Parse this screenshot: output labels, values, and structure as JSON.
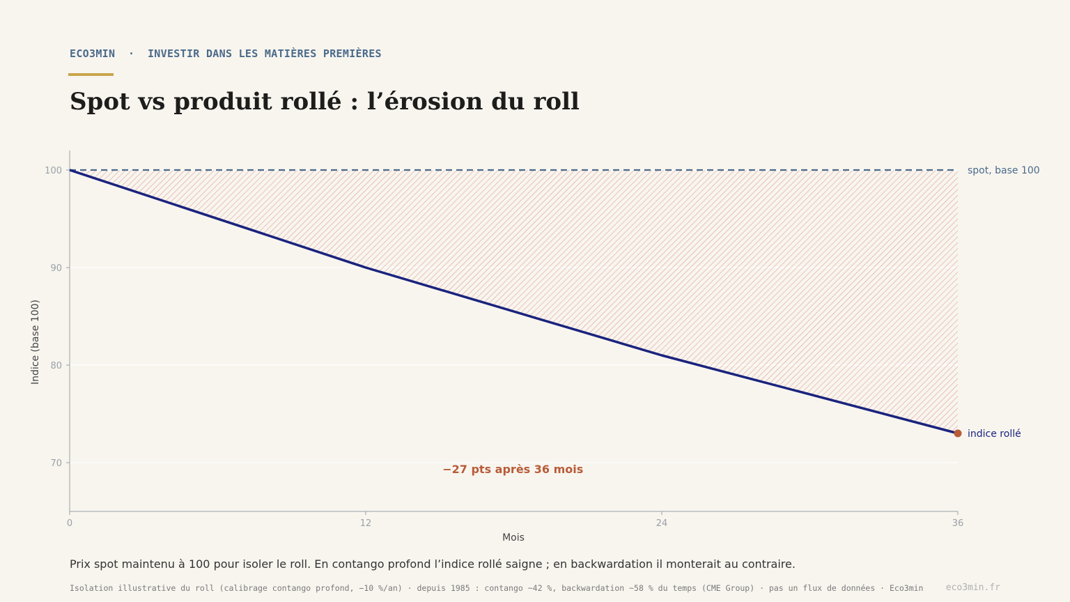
{
  "header": {
    "kicker": "ECO3MIN  ·  INVESTIR DANS LES MATIÈRES PREMIÈRES",
    "title": "Spot vs produit rollé : l’érosion du roll"
  },
  "colors": {
    "accent_gold": "#c9a54a",
    "spot_line": "#4a6a8a",
    "rolled_line": "#1a237e",
    "erosion_hatch": "#e0a090",
    "annotation": "#b85c38"
  },
  "chart_data": {
    "type": "line",
    "xlabel": "Mois",
    "ylabel": "Indice (base 100)",
    "xlim": [
      0,
      36
    ],
    "ylim": [
      65,
      102
    ],
    "x_ticks": [
      0,
      12,
      24,
      36
    ],
    "y_ticks": [
      70,
      80,
      90,
      100
    ],
    "x_tick_labels": [
      "0",
      "12",
      "24",
      "36"
    ],
    "y_tick_labels": [
      "70",
      "80",
      "90",
      "100"
    ],
    "grid": true,
    "series": [
      {
        "name": "spot, base 100",
        "x": [
          0,
          36
        ],
        "values": [
          100,
          100
        ],
        "style": "dashed"
      },
      {
        "name": "indice rollé",
        "x": [
          0,
          12,
          24,
          36
        ],
        "values": [
          100,
          90,
          81,
          73
        ],
        "style": "solid",
        "end_marker": true
      }
    ],
    "shaded_area": "between spot and indice rollé (hatched)",
    "annotation": {
      "text": "−27 pts après 36 mois",
      "x": 15,
      "y": 69.3
    }
  },
  "footer": {
    "caption": "Prix spot maintenu à 100 pour isoler le roll. En contango profond l’indice rollé saigne ; en backwardation il monterait au contraire.",
    "source": "Isolation illustrative du roll (calibrage contango profond, −10 %/an)  ·  depuis 1985 : contango ~42 %, backwardation ~58 % du temps (CME Group)  ·  pas un flux de données  ·  Eco3min",
    "brand": "eco3min.fr"
  }
}
